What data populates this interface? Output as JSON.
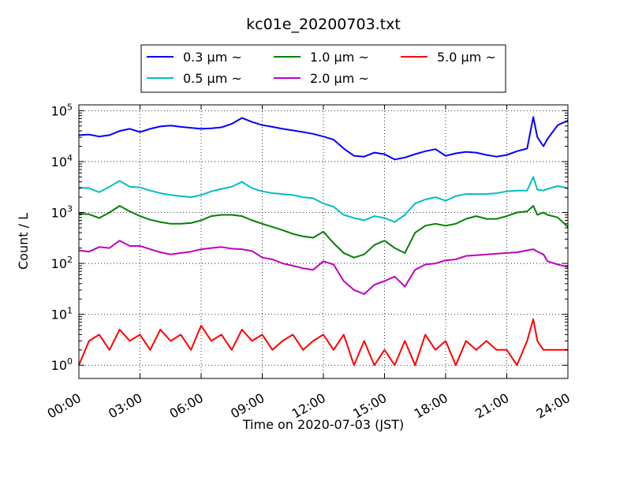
{
  "chart_data": {
    "type": "line",
    "title": "kc01e_20200703.txt",
    "xlabel": "Time on 2020-07-03 (JST)",
    "ylabel": "Count / L",
    "xlim": [
      0,
      24
    ],
    "ylim": [
      0.55,
      130000
    ],
    "yscale": "log",
    "grid": true,
    "legend_position": "top-outside",
    "x_tick_labels": [
      "00:00",
      "03:00",
      "06:00",
      "09:00",
      "12:00",
      "15:00",
      "18:00",
      "21:00",
      "24:00"
    ],
    "y_tick_labels": [
      {
        "base": "10",
        "exp": "0"
      },
      {
        "base": "10",
        "exp": "1"
      },
      {
        "base": "10",
        "exp": "2"
      },
      {
        "base": "10",
        "exp": "3"
      },
      {
        "base": "10",
        "exp": "4"
      },
      {
        "base": "10",
        "exp": "5"
      }
    ],
    "series": [
      {
        "name": "0.3 μm ~",
        "color": "#0000ff",
        "x": [
          0,
          0.5,
          1,
          1.5,
          2,
          2.5,
          3,
          3.5,
          4,
          4.5,
          5,
          5.5,
          6,
          6.5,
          7,
          7.5,
          8,
          8.5,
          9,
          9.5,
          10,
          10.5,
          11,
          11.5,
          12,
          12.5,
          13,
          13.5,
          14,
          14.5,
          15,
          15.5,
          16,
          16.5,
          17,
          17.5,
          18,
          18.5,
          19,
          19.5,
          20,
          20.5,
          21,
          21.5,
          22,
          22.3,
          22.5,
          22.8,
          23,
          23.5,
          24
        ],
        "values": [
          33000,
          34000,
          31000,
          33000,
          40000,
          44000,
          38000,
          44000,
          49000,
          51000,
          48000,
          46000,
          44000,
          45000,
          47000,
          55000,
          72000,
          60000,
          52000,
          48000,
          44000,
          41000,
          38000,
          35000,
          31000,
          27000,
          18000,
          13000,
          12500,
          15000,
          14000,
          11000,
          12000,
          14000,
          16000,
          17500,
          13000,
          14500,
          15500,
          15000,
          13500,
          12500,
          13500,
          16000,
          18000,
          75000,
          30000,
          20000,
          28000,
          52000,
          64000
        ]
      },
      {
        "name": "0.5 μm ~",
        "color": "#00bfbf",
        "x": [
          0,
          0.5,
          1,
          1.5,
          2,
          2.5,
          3,
          3.5,
          4,
          4.5,
          5,
          5.5,
          6,
          6.5,
          7,
          7.5,
          8,
          8.5,
          9,
          9.5,
          10,
          10.5,
          11,
          11.5,
          12,
          12.5,
          13,
          13.5,
          14,
          14.5,
          15,
          15.5,
          16,
          16.5,
          17,
          17.5,
          18,
          18.5,
          19,
          19.5,
          20,
          20.5,
          21,
          21.5,
          22,
          22.3,
          22.5,
          22.8,
          23,
          23.5,
          24
        ],
        "values": [
          3100,
          3000,
          2500,
          3200,
          4200,
          3200,
          3100,
          2700,
          2400,
          2200,
          2100,
          2000,
          2200,
          2600,
          2900,
          3200,
          4000,
          3000,
          2600,
          2400,
          2300,
          2200,
          2000,
          1900,
          1500,
          1300,
          900,
          780,
          700,
          850,
          780,
          650,
          900,
          1500,
          1800,
          2000,
          1700,
          2100,
          2300,
          2300,
          2300,
          2400,
          2600,
          2700,
          2700,
          5000,
          2800,
          2700,
          2900,
          3300,
          3000
        ]
      },
      {
        "name": "1.0 μm ~",
        "color": "#008000",
        "x": [
          0,
          0.5,
          1,
          1.5,
          2,
          2.5,
          3,
          3.5,
          4,
          4.5,
          5,
          5.5,
          6,
          6.5,
          7,
          7.5,
          8,
          8.5,
          9,
          9.5,
          10,
          10.5,
          11,
          11.5,
          12,
          12.5,
          13,
          13.5,
          14,
          14.5,
          15,
          15.5,
          16,
          16.5,
          17,
          17.5,
          18,
          18.5,
          19,
          19.5,
          20,
          20.5,
          21,
          21.5,
          22,
          22.3,
          22.5,
          22.8,
          23,
          23.5,
          24
        ],
        "values": [
          950,
          920,
          780,
          1000,
          1350,
          1050,
          850,
          720,
          650,
          600,
          600,
          620,
          700,
          850,
          900,
          900,
          850,
          700,
          600,
          520,
          450,
          380,
          340,
          320,
          420,
          250,
          160,
          130,
          150,
          230,
          280,
          200,
          160,
          400,
          550,
          600,
          550,
          600,
          750,
          850,
          750,
          750,
          850,
          1000,
          1050,
          1350,
          900,
          1000,
          900,
          800,
          520
        ]
      },
      {
        "name": "2.0 μm ~",
        "color": "#bf00bf",
        "x": [
          0,
          0.5,
          1,
          1.5,
          2,
          2.5,
          3,
          3.5,
          4,
          4.5,
          5,
          5.5,
          6,
          6.5,
          7,
          7.5,
          8,
          8.5,
          9,
          9.5,
          10,
          10.5,
          11,
          11.5,
          12,
          12.5,
          13,
          13.5,
          14,
          14.5,
          15,
          15.5,
          16,
          16.5,
          17,
          17.5,
          18,
          18.5,
          19,
          19.5,
          20,
          20.5,
          21,
          21.5,
          22,
          22.3,
          22.5,
          22.8,
          23,
          23.5,
          24
        ],
        "values": [
          180,
          170,
          210,
          200,
          280,
          220,
          220,
          190,
          165,
          150,
          160,
          170,
          190,
          200,
          210,
          195,
          190,
          175,
          130,
          120,
          100,
          90,
          80,
          75,
          110,
          95,
          45,
          30,
          25,
          38,
          45,
          55,
          35,
          75,
          95,
          100,
          115,
          120,
          140,
          145,
          150,
          155,
          160,
          165,
          180,
          190,
          170,
          150,
          110,
          95,
          85
        ]
      },
      {
        "name": "5.0 μm ~",
        "color": "#ff0000",
        "x": [
          0,
          0.5,
          1,
          1.5,
          2,
          2.5,
          3,
          3.5,
          4,
          4.5,
          5,
          5.5,
          6,
          6.5,
          7,
          7.5,
          8,
          8.5,
          9,
          9.5,
          10,
          10.5,
          11,
          11.5,
          12,
          12.5,
          13,
          13.5,
          14,
          14.5,
          15,
          15.5,
          16,
          16.5,
          17,
          17.5,
          18,
          18.5,
          19,
          19.5,
          20,
          20.5,
          21,
          21.5,
          22,
          22.3,
          22.5,
          22.8,
          23,
          23.5,
          24
        ],
        "values": [
          1,
          3,
          4,
          2,
          5,
          3,
          4,
          2,
          5,
          3,
          4,
          2,
          6,
          3,
          4,
          2,
          5,
          3,
          4,
          2,
          3,
          4,
          2,
          3,
          4,
          2,
          4,
          1,
          3,
          1,
          2,
          1,
          3,
          1,
          4,
          2,
          3,
          1,
          3,
          2,
          3,
          2,
          2,
          1,
          3,
          8,
          3,
          2,
          2,
          2,
          2
        ]
      }
    ]
  }
}
